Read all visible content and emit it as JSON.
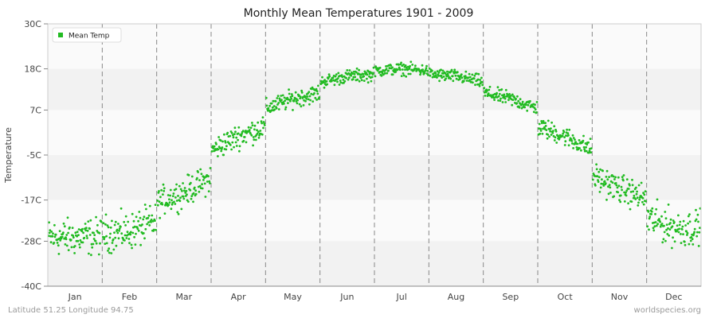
{
  "chart_data": {
    "type": "scatter",
    "title": "Monthly Mean Temperatures 1901 - 2009",
    "xlabel": "",
    "ylabel": "Temperature",
    "ylim": [
      -40,
      30
    ],
    "y_ticks": [
      {
        "value": 30,
        "label": "30C"
      },
      {
        "value": 18,
        "label": "18C"
      },
      {
        "value": 7,
        "label": "7C"
      },
      {
        "value": -5,
        "label": "-5C"
      },
      {
        "value": -17,
        "label": "-17C"
      },
      {
        "value": -28,
        "label": "-28C"
      },
      {
        "value": -40,
        "label": "-40C"
      }
    ],
    "categories": [
      "Jan",
      "Feb",
      "Mar",
      "Apr",
      "May",
      "Jun",
      "Jul",
      "Aug",
      "Sep",
      "Oct",
      "Nov",
      "Dec"
    ],
    "grid": {
      "vertical_dashed_month_separators": true,
      "horizontal_bands": true
    },
    "legend": {
      "position": "top-left",
      "entries": [
        {
          "label": "Mean Temp",
          "color": "#22bb22"
        }
      ]
    },
    "series": [
      {
        "name": "Mean Temp",
        "color": "#22bb22",
        "years": [
          1901,
          2009
        ],
        "monthly_summary": [
          {
            "month": "Jan",
            "center": -27.0,
            "spread": 4.5
          },
          {
            "month": "Feb",
            "center": -25.5,
            "spread": 4.5
          },
          {
            "month": "Mar",
            "center": -15.0,
            "spread": 3.5
          },
          {
            "month": "Apr",
            "center": 0.0,
            "spread": 3.0
          },
          {
            "month": "May",
            "center": 10.0,
            "spread": 2.2
          },
          {
            "month": "Jun",
            "center": 16.0,
            "spread": 1.6
          },
          {
            "month": "Jul",
            "center": 18.0,
            "spread": 1.5
          },
          {
            "month": "Aug",
            "center": 16.0,
            "spread": 1.6
          },
          {
            "month": "Sep",
            "center": 10.0,
            "spread": 1.8
          },
          {
            "month": "Oct",
            "center": 0.0,
            "spread": 2.4
          },
          {
            "month": "Nov",
            "center": -14.0,
            "spread": 3.5
          },
          {
            "month": "Dec",
            "center": -24.5,
            "spread": 4.5
          }
        ]
      }
    ]
  },
  "footer": {
    "location": "Latitude 51.25 Longitude 94.75",
    "source": "worldspecies.org"
  }
}
